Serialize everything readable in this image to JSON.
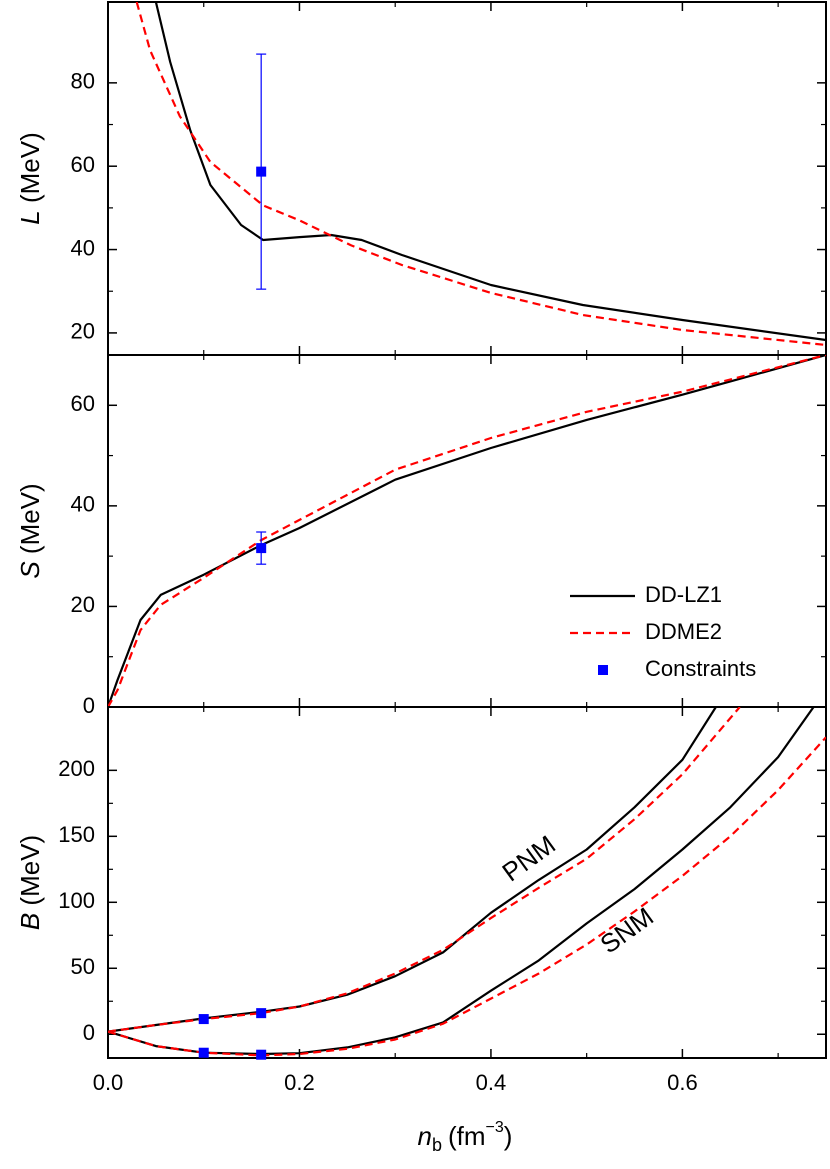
{
  "chart_data": [
    {
      "type": "line",
      "ylabel": {
        "symbol": "L",
        "unit": "(MeV)"
      },
      "xlim": [
        0,
        0.75
      ],
      "ylim": [
        14.7,
        99.4
      ],
      "yticks": [
        20,
        40,
        60,
        80
      ],
      "series": [
        {
          "name": "DD-LZ1",
          "color": "#000000",
          "dash": false,
          "x": [
            0.05,
            0.065,
            0.086,
            0.107,
            0.139,
            0.162,
            0.2,
            0.233,
            0.265,
            0.307,
            0.4,
            0.496,
            0.6,
            0.75
          ],
          "values": [
            99.4,
            85,
            68.6,
            55.5,
            45.9,
            42.3,
            43,
            43.5,
            42.3,
            38.7,
            31.5,
            26.7,
            23.1,
            18.3
          ]
        },
        {
          "name": "DDME2",
          "color": "#ff0000",
          "dash": true,
          "x": [
            0.03,
            0.044,
            0.075,
            0.107,
            0.162,
            0.2,
            0.254,
            0.307,
            0.4,
            0.496,
            0.6,
            0.75
          ],
          "values": [
            99.4,
            87.8,
            72,
            61,
            50.6,
            47,
            41,
            36.3,
            29.6,
            24.3,
            20.7,
            17.1
          ]
        },
        {
          "name": "Constraints",
          "color": "#0000ff",
          "markers": true,
          "x": [
            0.16
          ],
          "values": [
            58.7
          ],
          "errors": [
            28.2
          ]
        }
      ]
    },
    {
      "type": "line",
      "ylabel": {
        "symbol": "S",
        "unit": "(MeV)"
      },
      "xlim": [
        0,
        0.75
      ],
      "ylim": [
        0,
        70
      ],
      "yticks": [
        0,
        20,
        40,
        60
      ],
      "legend": "right",
      "series": [
        {
          "name": "DD-LZ1",
          "color": "#000000",
          "dash": false,
          "x": [
            0,
            0.01,
            0.034,
            0.055,
            0.1,
            0.16,
            0.2,
            0.3,
            0.4,
            0.5,
            0.6,
            0.75
          ],
          "values": [
            0,
            5.4,
            17.3,
            22.3,
            26.3,
            32.2,
            35.6,
            45.2,
            51.5,
            57.1,
            62.1,
            70
          ]
        },
        {
          "name": "DDME2",
          "color": "#ff0000",
          "dash": true,
          "x": [
            0,
            0.01,
            0.034,
            0.055,
            0.1,
            0.16,
            0.2,
            0.3,
            0.4,
            0.5,
            0.6,
            0.75
          ],
          "values": [
            0,
            3.4,
            15.3,
            20.3,
            25.7,
            33.2,
            37.2,
            47.2,
            53.5,
            58.7,
            62.7,
            70
          ]
        },
        {
          "name": "Constraints",
          "color": "#0000ff",
          "markers": true,
          "x": [
            0.16
          ],
          "values": [
            31.6
          ],
          "errors": [
            3.2
          ]
        }
      ]
    },
    {
      "type": "line",
      "ylabel": {
        "symbol": "B",
        "unit": "(MeV)"
      },
      "xlabel": {
        "symbol": "n",
        "subscript": "b",
        "unit": "(fm",
        "exponent": "−3",
        "close": ")"
      },
      "xlim": [
        0,
        0.75
      ],
      "ylim": [
        -18,
        248
      ],
      "xticks": [
        {
          "value": 0,
          "label": "0.0"
        },
        0.2,
        0.4,
        0.6
      ],
      "yticks": [
        0,
        50,
        100,
        150,
        200
      ],
      "annotations": [
        "PNM",
        "SNM"
      ],
      "series": [
        {
          "name": "DD-LZ1",
          "color": "#000000",
          "dash": false,
          "x": [
            0,
            0.05,
            0.1,
            0.16,
            0.2,
            0.25,
            0.3,
            0.35,
            0.4,
            0.45,
            0.5,
            0.55,
            0.6,
            0.635
          ],
          "values": [
            2,
            7,
            12,
            17,
            21,
            30,
            44,
            62,
            92,
            117,
            140,
            172,
            208,
            248
          ]
        },
        {
          "name": "DDME2",
          "color": "#ff0000",
          "dash": true,
          "x": [
            0,
            0.05,
            0.1,
            0.16,
            0.2,
            0.25,
            0.3,
            0.35,
            0.4,
            0.45,
            0.5,
            0.55,
            0.6,
            0.66
          ],
          "values": [
            2,
            7,
            11.5,
            16,
            21,
            31,
            46,
            64,
            88,
            111,
            133,
            163,
            197,
            248
          ]
        },
        {
          "name": "DD-LZ1",
          "color": "#000000",
          "dash": false,
          "x": [
            0,
            0.05,
            0.1,
            0.16,
            0.2,
            0.25,
            0.3,
            0.35,
            0.4,
            0.45,
            0.5,
            0.55,
            0.6,
            0.65,
            0.7,
            0.737
          ],
          "values": [
            2,
            -9,
            -14,
            -15,
            -14.4,
            -10,
            -2.3,
            9,
            33,
            56,
            84,
            110,
            140,
            172,
            210,
            248
          ]
        },
        {
          "name": "DDME2",
          "color": "#ff0000",
          "dash": true,
          "x": [
            0,
            0.05,
            0.1,
            0.16,
            0.2,
            0.25,
            0.3,
            0.35,
            0.4,
            0.45,
            0.5,
            0.55,
            0.6,
            0.65,
            0.7,
            0.75
          ],
          "values": [
            2,
            -9,
            -14,
            -16,
            -15,
            -11,
            -4,
            8,
            27,
            46,
            68,
            93,
            120,
            150,
            185,
            225
          ]
        },
        {
          "name": "Constraints",
          "color": "#0000ff",
          "markers": true,
          "x": [
            0.1,
            0.16,
            0.1,
            0.16
          ],
          "values": [
            11.5,
            16,
            -14,
            -15.5
          ]
        }
      ]
    }
  ]
}
